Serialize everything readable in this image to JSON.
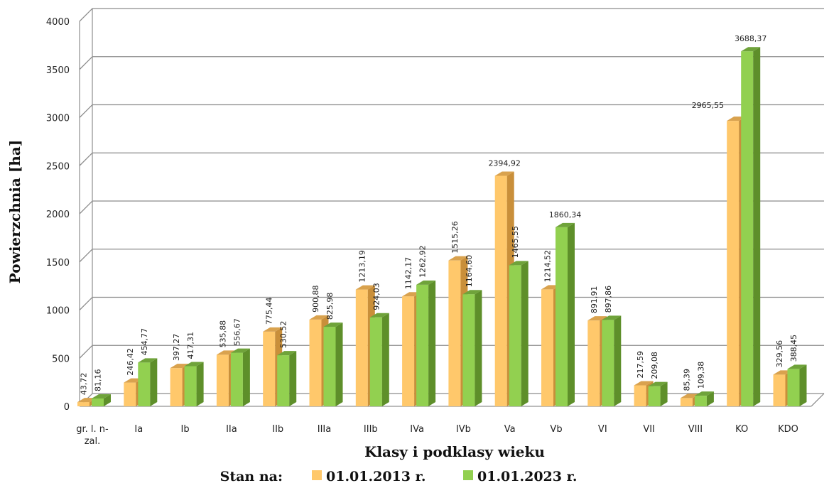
{
  "chart_data": {
    "type": "bar",
    "xlabel": "Klasy i podklasy wieku",
    "ylabel": "Powierzchnia [ha]",
    "ylim": [
      0,
      4000
    ],
    "yticks": [
      "0",
      "500",
      "1000",
      "1500",
      "2000",
      "2500",
      "3000",
      "3500",
      "4000"
    ],
    "grid": true,
    "legend_title": "Stan na:",
    "legend_position": "bottom",
    "categories": [
      [
        "gr. l. n-",
        "zal."
      ],
      [
        "Ia"
      ],
      [
        "Ib"
      ],
      [
        "IIa"
      ],
      [
        "IIb"
      ],
      [
        "IIIa"
      ],
      [
        "IIIb"
      ],
      [
        "IVa"
      ],
      [
        "IVb"
      ],
      [
        "Va"
      ],
      [
        "Vb"
      ],
      [
        "VI"
      ],
      [
        "VII"
      ],
      [
        "VIII"
      ],
      [
        "KO"
      ],
      [
        "KDO"
      ]
    ],
    "series": [
      {
        "name": "01.01.2013 r.",
        "color": "#FFC86B",
        "values": [
          43.72,
          246.42,
          397.27,
          535.88,
          775.44,
          900.88,
          1213.19,
          1142.17,
          1515.26,
          2394.92,
          1214.52,
          891.91,
          217.59,
          85.39,
          2965.55,
          329.56
        ],
        "labels": [
          "43,72",
          "246,42",
          "397,27",
          "535,88",
          "775,44",
          "900,88",
          "1213,19",
          "1142,17",
          "1515,26",
          "2394,92",
          "1214,52",
          "891,91",
          "217,59",
          "85,39",
          "2965,55",
          "329,56"
        ]
      },
      {
        "name": "01.01.2023 r.",
        "color": "#92D050",
        "values": [
          81.16,
          454.77,
          417.31,
          556.67,
          530.52,
          825.98,
          924.03,
          1262.92,
          1164.6,
          1465.55,
          1860.34,
          897.86,
          209.08,
          109.38,
          3688.37,
          388.45
        ],
        "labels": [
          "81,16",
          "454,77",
          "417,31",
          "556,67",
          "530,52",
          "825,98",
          "924,03",
          "1262,92",
          "1164,60",
          "1465,55",
          "1860,34",
          "897,86",
          "209,08",
          "109,38",
          "3688,37",
          "388,45"
        ]
      }
    ]
  }
}
